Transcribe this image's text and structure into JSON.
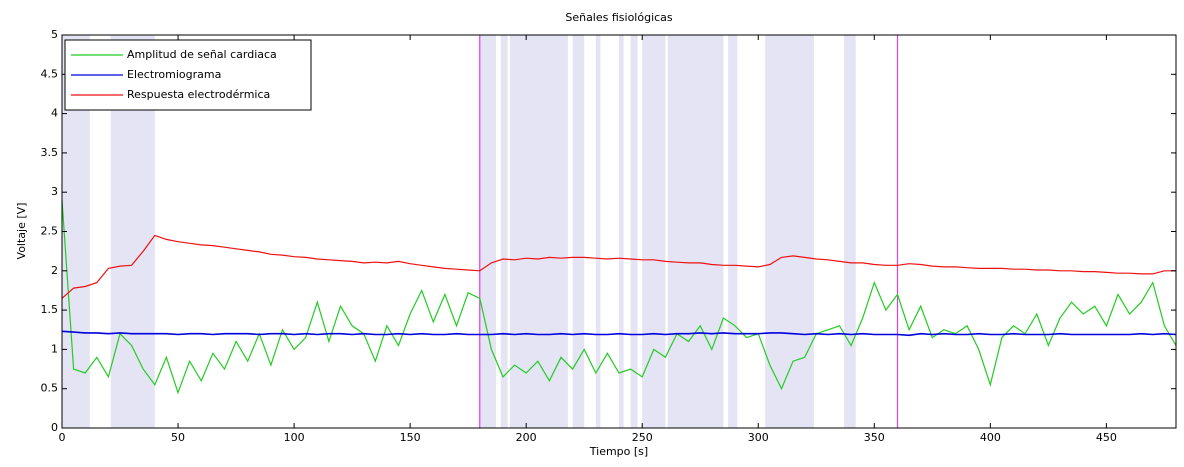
{
  "chart_data": {
    "type": "line",
    "title": "Señales fisiológicas",
    "xlabel": "Tiempo [s]",
    "ylabel": "Voltaje [V]",
    "x": [
      0,
      5,
      10,
      15,
      20,
      25,
      30,
      35,
      40,
      45,
      50,
      55,
      60,
      65,
      70,
      75,
      80,
      85,
      90,
      95,
      100,
      105,
      110,
      115,
      120,
      125,
      130,
      135,
      140,
      145,
      150,
      155,
      160,
      165,
      170,
      175,
      180,
      185,
      190,
      195,
      200,
      205,
      210,
      215,
      220,
      225,
      230,
      235,
      240,
      245,
      250,
      255,
      260,
      265,
      270,
      275,
      280,
      285,
      290,
      295,
      300,
      305,
      310,
      315,
      320,
      325,
      330,
      335,
      340,
      345,
      350,
      355,
      360,
      365,
      370,
      375,
      380,
      385,
      390,
      395,
      400,
      405,
      410,
      415,
      420,
      425,
      430,
      435,
      440,
      445,
      450,
      455,
      460,
      465,
      470,
      475,
      480
    ],
    "series": [
      {
        "name": "Amplitud de señal cardiaca",
        "color": "#22cc22",
        "values": [
          2.9,
          0.75,
          0.7,
          0.9,
          0.65,
          1.2,
          1.05,
          0.75,
          0.55,
          0.9,
          0.45,
          0.85,
          0.6,
          0.95,
          0.75,
          1.1,
          0.85,
          1.2,
          0.8,
          1.25,
          1.0,
          1.15,
          1.6,
          1.1,
          1.55,
          1.3,
          1.2,
          0.85,
          1.3,
          1.05,
          1.45,
          1.75,
          1.35,
          1.7,
          1.3,
          1.72,
          1.65,
          1.0,
          0.65,
          0.8,
          0.7,
          0.85,
          0.6,
          0.9,
          0.75,
          1.0,
          0.7,
          0.95,
          0.7,
          0.75,
          0.65,
          1.0,
          0.9,
          1.2,
          1.1,
          1.3,
          1.0,
          1.4,
          1.3,
          1.15,
          1.2,
          0.8,
          0.5,
          0.85,
          0.9,
          1.2,
          1.25,
          1.3,
          1.05,
          1.4,
          1.85,
          1.5,
          1.7,
          1.25,
          1.55,
          1.15,
          1.25,
          1.2,
          1.3,
          1.0,
          0.55,
          1.15,
          1.3,
          1.2,
          1.45,
          1.05,
          1.4,
          1.6,
          1.45,
          1.55,
          1.3,
          1.7,
          1.45,
          1.6,
          1.85,
          1.3,
          1.05
        ]
      },
      {
        "name": "Electromiograma",
        "color": "#0000dd",
        "values": [
          1.23,
          1.22,
          1.21,
          1.21,
          1.2,
          1.21,
          1.2,
          1.2,
          1.2,
          1.2,
          1.19,
          1.2,
          1.2,
          1.19,
          1.2,
          1.2,
          1.2,
          1.19,
          1.2,
          1.2,
          1.19,
          1.2,
          1.19,
          1.2,
          1.2,
          1.19,
          1.2,
          1.19,
          1.19,
          1.2,
          1.19,
          1.2,
          1.19,
          1.19,
          1.2,
          1.19,
          1.19,
          1.19,
          1.2,
          1.19,
          1.2,
          1.19,
          1.19,
          1.2,
          1.19,
          1.2,
          1.19,
          1.19,
          1.2,
          1.19,
          1.19,
          1.2,
          1.19,
          1.2,
          1.2,
          1.21,
          1.2,
          1.21,
          1.2,
          1.2,
          1.2,
          1.21,
          1.21,
          1.2,
          1.19,
          1.2,
          1.19,
          1.2,
          1.19,
          1.2,
          1.19,
          1.19,
          1.19,
          1.18,
          1.2,
          1.19,
          1.2,
          1.19,
          1.19,
          1.2,
          1.19,
          1.19,
          1.2,
          1.19,
          1.19,
          1.19,
          1.2,
          1.19,
          1.19,
          1.19,
          1.19,
          1.19,
          1.19,
          1.2,
          1.19,
          1.2,
          1.19
        ]
      },
      {
        "name": "Respuesta electrodérmica",
        "color": "#ee1111",
        "values": [
          1.65,
          1.78,
          1.8,
          1.85,
          2.03,
          2.06,
          2.07,
          2.25,
          2.45,
          2.4,
          2.37,
          2.35,
          2.33,
          2.32,
          2.3,
          2.28,
          2.26,
          2.24,
          2.21,
          2.2,
          2.18,
          2.17,
          2.15,
          2.14,
          2.13,
          2.12,
          2.1,
          2.11,
          2.1,
          2.12,
          2.09,
          2.07,
          2.05,
          2.03,
          2.02,
          2.01,
          2.0,
          2.1,
          2.15,
          2.14,
          2.16,
          2.15,
          2.17,
          2.16,
          2.17,
          2.17,
          2.16,
          2.15,
          2.16,
          2.15,
          2.14,
          2.14,
          2.12,
          2.11,
          2.1,
          2.1,
          2.08,
          2.07,
          2.07,
          2.06,
          2.05,
          2.08,
          2.17,
          2.19,
          2.17,
          2.15,
          2.14,
          2.12,
          2.1,
          2.1,
          2.08,
          2.07,
          2.07,
          2.09,
          2.08,
          2.06,
          2.05,
          2.05,
          2.04,
          2.03,
          2.03,
          2.03,
          2.02,
          2.02,
          2.01,
          2.01,
          2.0,
          2.0,
          1.99,
          1.99,
          1.98,
          1.97,
          1.97,
          1.96,
          1.96,
          2.0,
          2.0
        ]
      }
    ],
    "shaded_regions": [
      [
        0,
        12
      ],
      [
        21,
        40
      ],
      [
        180,
        187
      ],
      [
        189,
        192
      ],
      [
        193,
        218
      ],
      [
        220,
        225
      ],
      [
        230,
        232
      ],
      [
        240,
        242
      ],
      [
        245,
        248
      ],
      [
        250,
        260
      ],
      [
        261,
        285
      ],
      [
        287,
        291
      ],
      [
        303,
        324
      ],
      [
        337,
        342
      ]
    ],
    "shade_color": "#e4e4f4",
    "vlines": [
      180,
      360
    ],
    "vline_color": "#e040e0",
    "xlim": [
      0,
      480
    ],
    "xticks": [
      0,
      50,
      100,
      150,
      200,
      250,
      300,
      350,
      400,
      450
    ],
    "ylim": [
      0,
      5
    ],
    "yticks": [
      0,
      0.5,
      1,
      1.5,
      2,
      2.5,
      3,
      3.5,
      4,
      4.5,
      5
    ],
    "legend": "upper left",
    "grid": false
  }
}
